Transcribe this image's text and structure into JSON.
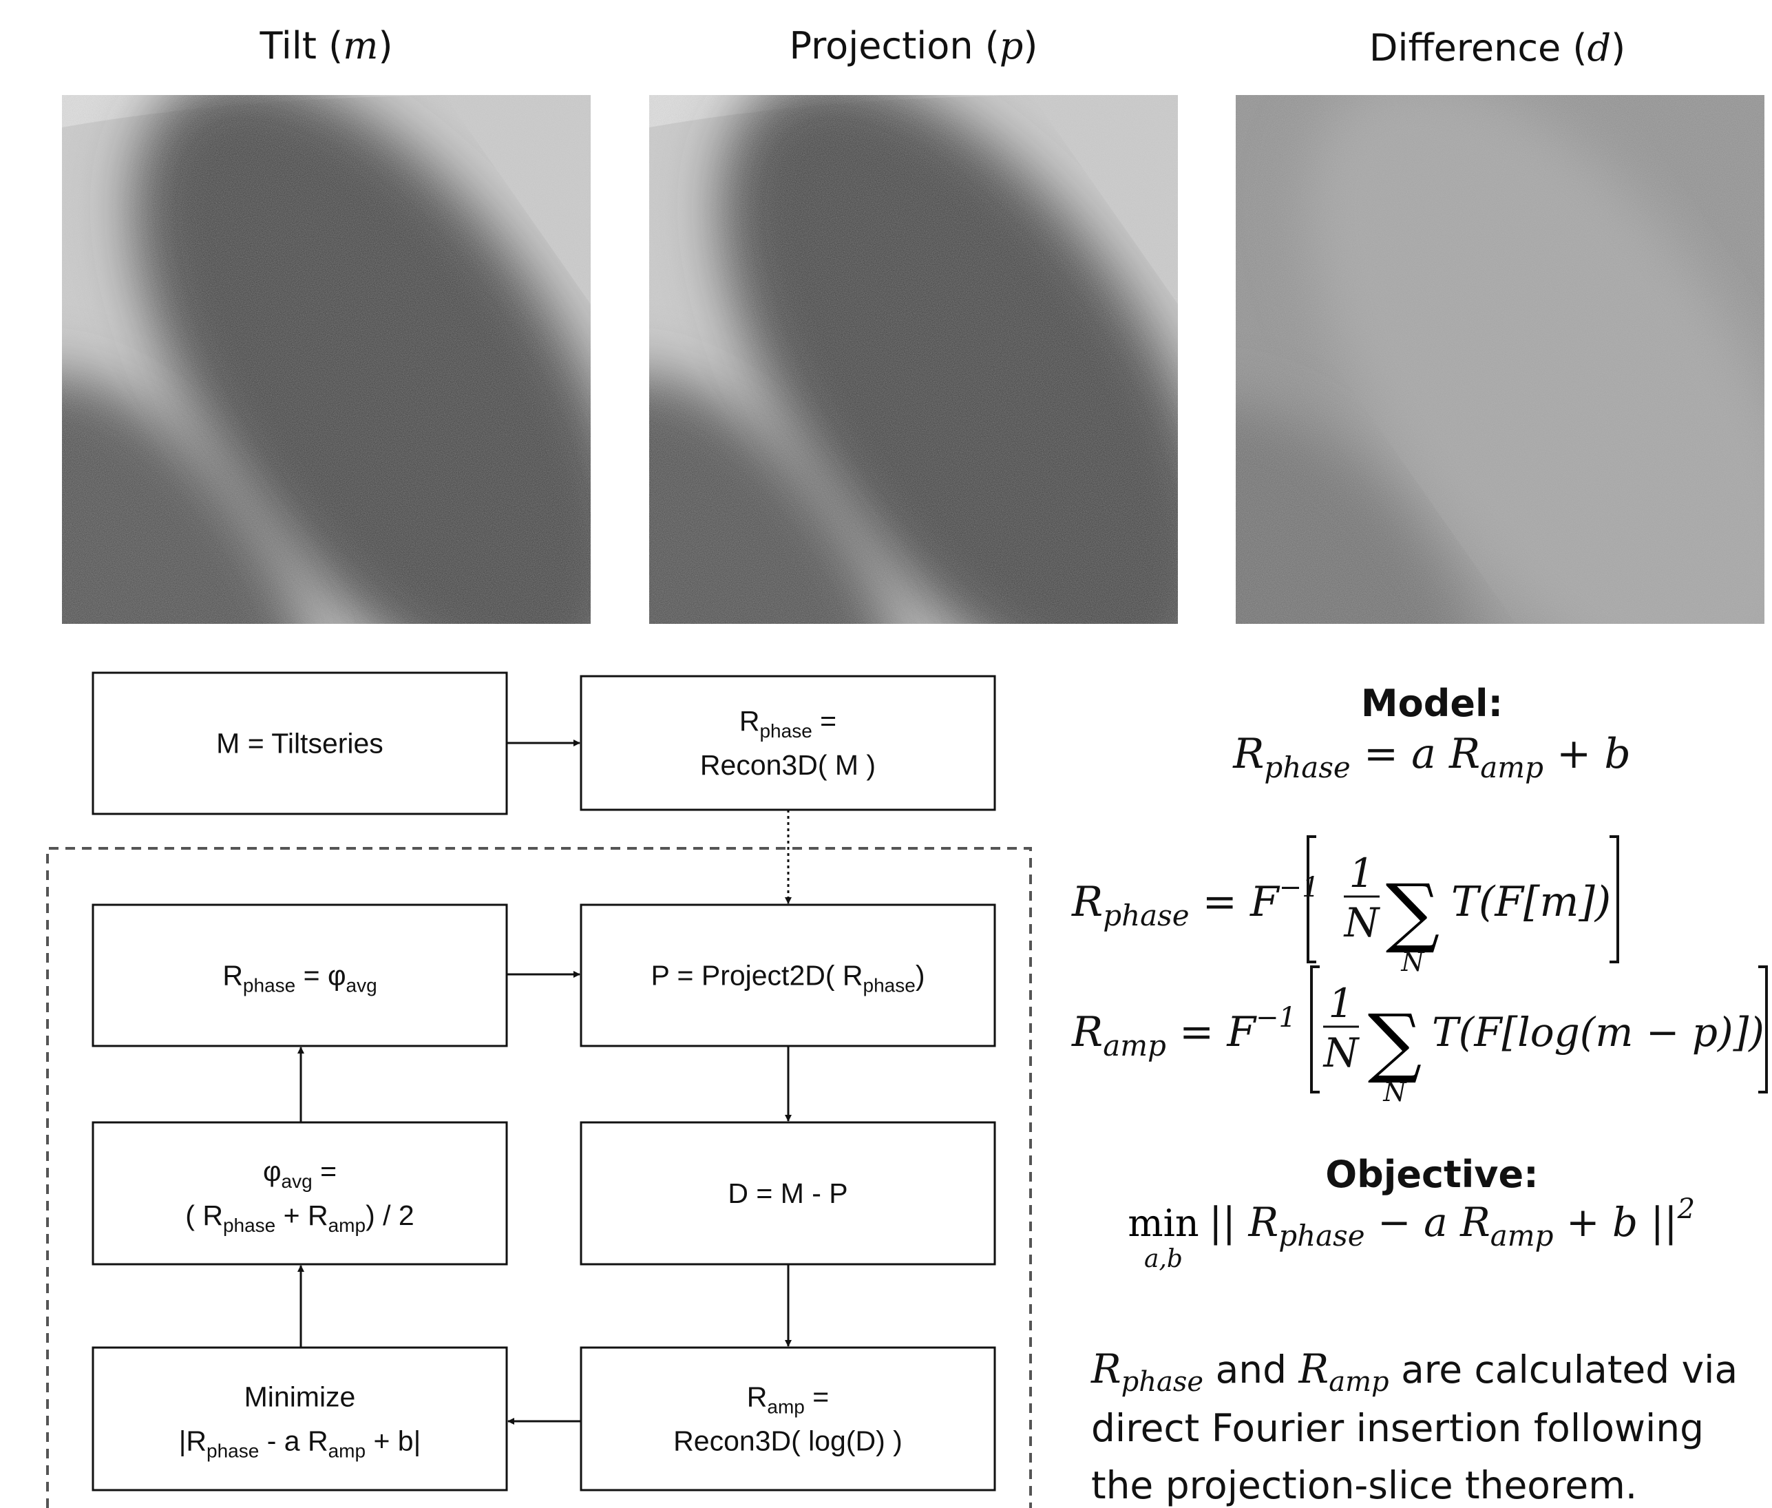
{
  "panels": [
    {
      "title": [
        "Tilt (",
        "m",
        ")"
      ]
    },
    {
      "title": [
        "Projection (",
        "p",
        ")"
      ]
    },
    {
      "title": [
        "Difference (",
        "d",
        ")"
      ]
    }
  ],
  "flowchart": {
    "nodes": [
      {
        "lines": [
          [
            "M = Tiltseries"
          ]
        ]
      },
      {
        "lines": [
          [
            "R",
            "phase",
            " ="
          ],
          [
            "Recon3D( M )"
          ]
        ]
      },
      {
        "lines": [
          [
            "R",
            "phase",
            " = φ",
            "avg"
          ]
        ]
      },
      {
        "lines": [
          [
            "P = Project2D( R",
            "phase",
            ")"
          ]
        ]
      },
      {
        "lines": [
          [
            "φ",
            "avg",
            " ="
          ],
          [
            "( R",
            "phase",
            " + R",
            "amp",
            ") / 2"
          ]
        ]
      },
      {
        "lines": [
          [
            "D = M - P"
          ]
        ]
      },
      {
        "lines": [
          [
            "Minimize"
          ],
          [
            "|R",
            "phase",
            " - a R",
            "amp",
            " + b|"
          ]
        ]
      },
      {
        "lines": [
          [
            "R",
            "amp",
            " ="
          ],
          [
            "Recon3D( log(D) )"
          ]
        ]
      }
    ]
  },
  "model": {
    "heading": "Model:",
    "equation": [
      "R",
      "phase",
      " = a R",
      "amp",
      " + b"
    ]
  },
  "equations": [
    {
      "lhs": [
        "R",
        "phase",
        " = F",
        "−1"
      ],
      "fraction": [
        "1",
        "N"
      ],
      "sum": [
        "∑",
        "N"
      ],
      "body": "T(F[m])"
    },
    {
      "lhs": [
        "R",
        "amp",
        " = F",
        "−1"
      ],
      "fraction": [
        "1",
        "N"
      ],
      "sum": [
        "∑",
        "N"
      ],
      "body": "T(F[log(m − p)])"
    }
  ],
  "objective": {
    "heading": "Objective:",
    "operator": [
      "min",
      "a,b"
    ],
    "expression": [
      "|| R",
      "phase",
      " − a R",
      "amp",
      " + b ||",
      "2"
    ]
  },
  "note": {
    "lines": [
      [
        "R",
        "phase",
        " and ",
        "R",
        "amp",
        " are calculated via"
      ],
      "direct Fourier insertion following",
      "the projection-slice theorem."
    ]
  }
}
